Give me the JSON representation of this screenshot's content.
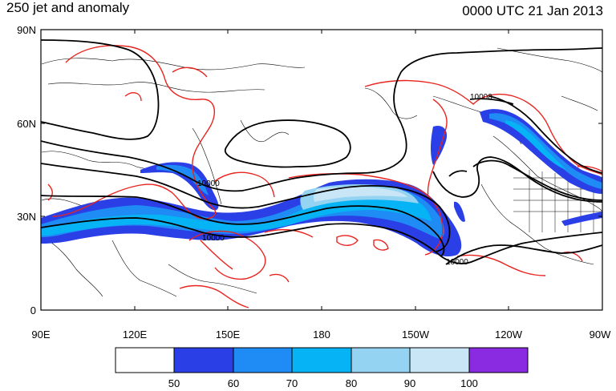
{
  "title_left": "250 jet and anomaly",
  "title_right": "0000 UTC 21 Jan 2013",
  "lat_ticks": [
    "90N",
    "60N",
    "30N",
    "0"
  ],
  "lon_ticks": [
    "90E",
    "120E",
    "150E",
    "180",
    "150W",
    "120W",
    "90W"
  ],
  "colorbar": {
    "labels": [
      "50",
      "60",
      "70",
      "80",
      "90",
      "100"
    ],
    "colors": [
      "#ffffff",
      "#2b3fe6",
      "#1f8cf5",
      "#06b4f5",
      "#94d4f2",
      "#c8e6f6",
      "#8a2be2"
    ]
  },
  "contour_labels": [
    "10000",
    "10000",
    "10000",
    "10000"
  ],
  "colors": {
    "jet_dark": "#2b3fe6",
    "jet_mid": "#1f8cf5",
    "jet_light": "#06b4f5",
    "jet_pale": "#94d4f2",
    "anomaly": "#e8241f",
    "height": "#000000",
    "coast": "#000000"
  }
}
